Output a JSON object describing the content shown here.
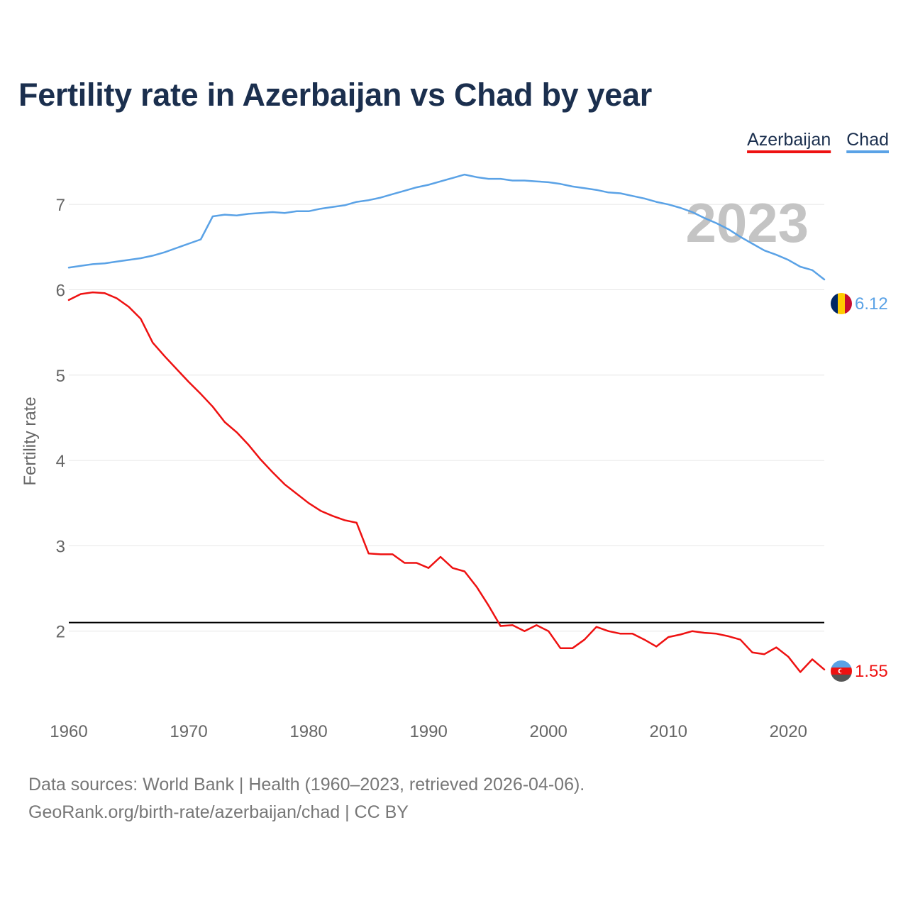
{
  "title": "Fertility rate in Azerbaijan vs Chad by year",
  "legend": {
    "azerbaijan": "Azerbaijan",
    "chad": "Chad"
  },
  "year_marker": "2023",
  "footer": {
    "line1": "Data sources: World Bank | Health (1960–2023, retrieved 2026-04-06).",
    "line2": "GeoRank.org/birth-rate/azerbaijan/chad | CC BY"
  },
  "icons": {
    "azerbaijan": "azerbaijan-flag-icon",
    "chad": "chad-flag-icon"
  },
  "colors": {
    "azerbaijan": "#ee1111",
    "chad": "#5aa2e6",
    "reference": "#000000",
    "grid": "#e6e6e6"
  },
  "chart_data": {
    "type": "line",
    "title": "Fertility rate in Azerbaijan vs Chad by year",
    "xlabel": "",
    "ylabel": "Fertility rate",
    "xlim": [
      1960,
      2023
    ],
    "ylim": [
      1.0,
      7.6
    ],
    "x_ticks": [
      1960,
      1970,
      1980,
      1990,
      2000,
      2010,
      2020
    ],
    "y_ticks": [
      2,
      3,
      4,
      5,
      6,
      7
    ],
    "grid": true,
    "reference_line": 2.1,
    "x": [
      1960,
      1961,
      1962,
      1963,
      1964,
      1965,
      1966,
      1967,
      1968,
      1969,
      1970,
      1971,
      1972,
      1973,
      1974,
      1975,
      1976,
      1977,
      1978,
      1979,
      1980,
      1981,
      1982,
      1983,
      1984,
      1985,
      1986,
      1987,
      1988,
      1989,
      1990,
      1991,
      1992,
      1993,
      1994,
      1995,
      1996,
      1997,
      1998,
      1999,
      2000,
      2001,
      2002,
      2003,
      2004,
      2005,
      2006,
      2007,
      2008,
      2009,
      2010,
      2011,
      2012,
      2013,
      2014,
      2015,
      2016,
      2017,
      2018,
      2019,
      2020,
      2021,
      2022,
      2023
    ],
    "series": [
      {
        "name": "Azerbaijan",
        "end_label": "1.55",
        "values": [
          5.88,
          5.95,
          5.97,
          5.96,
          5.9,
          5.8,
          5.66,
          5.38,
          5.22,
          5.07,
          4.92,
          4.78,
          4.63,
          4.45,
          4.33,
          4.18,
          4.01,
          3.86,
          3.72,
          3.61,
          3.5,
          3.41,
          3.35,
          3.3,
          3.27,
          2.91,
          2.9,
          2.9,
          2.8,
          2.8,
          2.74,
          2.87,
          2.74,
          2.7,
          2.52,
          2.3,
          2.06,
          2.07,
          2.0,
          2.07,
          2.0,
          1.8,
          1.8,
          1.9,
          2.05,
          2.0,
          1.97,
          1.97,
          1.9,
          1.82,
          1.93,
          1.96,
          2.0,
          1.98,
          1.97,
          1.94,
          1.9,
          1.75,
          1.73,
          1.81,
          1.7,
          1.52,
          1.67,
          1.55
        ]
      },
      {
        "name": "Chad",
        "end_label": "6.12",
        "values": [
          6.26,
          6.28,
          6.3,
          6.31,
          6.33,
          6.35,
          6.37,
          6.4,
          6.44,
          6.49,
          6.54,
          6.59,
          6.86,
          6.88,
          6.87,
          6.89,
          6.9,
          6.91,
          6.9,
          6.92,
          6.92,
          6.95,
          6.97,
          6.99,
          7.03,
          7.05,
          7.08,
          7.12,
          7.16,
          7.2,
          7.23,
          7.27,
          7.31,
          7.35,
          7.32,
          7.3,
          7.3,
          7.28,
          7.28,
          7.27,
          7.26,
          7.24,
          7.21,
          7.19,
          7.17,
          7.14,
          7.13,
          7.1,
          7.07,
          7.03,
          7.0,
          6.96,
          6.91,
          6.84,
          6.78,
          6.71,
          6.62,
          6.54,
          6.46,
          6.41,
          6.35,
          6.27,
          6.23,
          6.12
        ]
      }
    ]
  }
}
